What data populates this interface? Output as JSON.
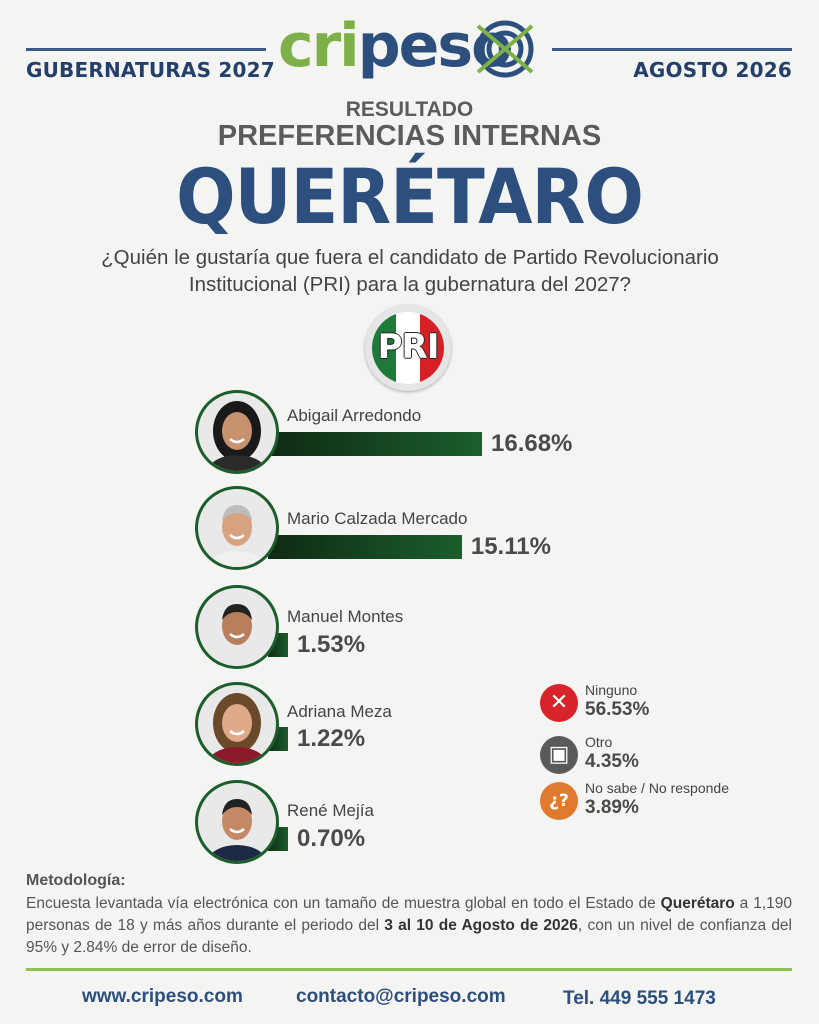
{
  "header": {
    "left_label": "GUBERNATURAS 2027",
    "right_label": "AGOSTO 2026",
    "logo_text_green": "cri",
    "logo_text_blue": "peso",
    "colors": {
      "green": "#7db046",
      "blue": "#2d4f7d"
    }
  },
  "titles": {
    "line1": "RESULTADO",
    "line2": "PREFERENCIAS INTERNAS",
    "state": "QUERÉTARO",
    "question_line1": "¿Quién le gustaría que fuera el candidato de Partido Revolucionario",
    "question_line2": "Institucional (PRI) para la gubernatura del 2027?"
  },
  "party_logo": {
    "text": "PRI",
    "colors": [
      "#1d7a3b",
      "#ffffff",
      "#d71f26"
    ]
  },
  "chart_data": {
    "type": "bar",
    "orientation": "horizontal",
    "categories": [
      "Abigail Arredondo",
      "Mario Calzada Mercado",
      "Manuel Montes",
      "Adriana Meza",
      "René Mejía"
    ],
    "values": [
      16.68,
      15.11,
      1.53,
      1.22,
      0.7
    ],
    "labels": [
      "16.68%",
      "15.11%",
      "1.53%",
      "1.22%",
      "0.70%"
    ],
    "bar_color": "#1b5e2b",
    "other_responses": [
      {
        "label": "Ninguno",
        "value": 56.53,
        "display": "56.53%",
        "icon": "x-icon",
        "color": "#d8232a"
      },
      {
        "label": "Otro",
        "value": 4.35,
        "display": "4.35%",
        "icon": "ballot-icon",
        "color": "#5a5a5a"
      },
      {
        "label": "No sabe / No responde",
        "value": 3.89,
        "display": "3.89%",
        "icon": "question-icon",
        "color": "#e07a2e"
      }
    ]
  },
  "methodology": {
    "title": "Metodología:",
    "part1": "Encuesta levantada vía electrónica con un tamaño de muestra global en todo el Estado de ",
    "state_bold": "Querétaro",
    "part2": " a 1,190 personas de 18 y más años durante el periodo del ",
    "period_bold": "3 al 10 de Agosto de 2026",
    "part3": ", con un nivel de confianza del 95% y 2.84% de error de diseño."
  },
  "footer": {
    "website": "www.cripeso.com",
    "email": "contacto@cripeso.com",
    "phone": "Tel. 449 555 1473"
  }
}
